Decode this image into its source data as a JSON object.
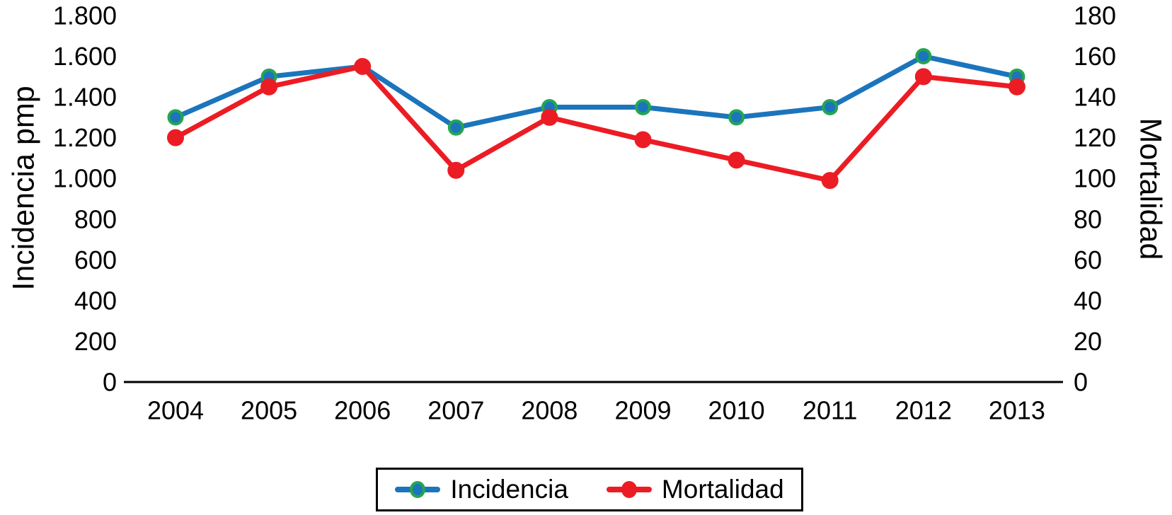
{
  "chart_data": {
    "type": "line",
    "title": "",
    "categories": [
      "2004",
      "2005",
      "2006",
      "2007",
      "2008",
      "2009",
      "2010",
      "2011",
      "2012",
      "2013"
    ],
    "series": [
      {
        "name": "Incidencia",
        "axis": "left",
        "color": "#1B75BC",
        "marker_edge_color": "#26A550",
        "values": [
          1300,
          1500,
          1550,
          1250,
          1350,
          1350,
          1300,
          1350,
          1600,
          1500
        ]
      },
      {
        "name": "Mortalidad",
        "axis": "right",
        "color": "#EC1C24",
        "marker_edge_color": "#EC1C24",
        "values": [
          120,
          145,
          155,
          104,
          130,
          119,
          109,
          99,
          150,
          145
        ]
      }
    ],
    "left_axis": {
      "label": "Incidencia pmp",
      "min": 0,
      "max": 1800,
      "tick_step": 200,
      "tick_labels": [
        "0",
        "200",
        "400",
        "600",
        "800",
        "1.000",
        "1.200",
        "1.400",
        "1.600",
        "1.800"
      ]
    },
    "right_axis": {
      "label": "Mortalidad",
      "min": 0,
      "max": 180,
      "tick_step": 20,
      "tick_labels": [
        "0",
        "20",
        "40",
        "60",
        "80",
        "100",
        "120",
        "140",
        "160",
        "180"
      ]
    },
    "legend": {
      "position": "bottom",
      "entries": [
        "Incidencia",
        "Mortalidad"
      ]
    },
    "grid": false,
    "axis_line_color": "#000000"
  }
}
